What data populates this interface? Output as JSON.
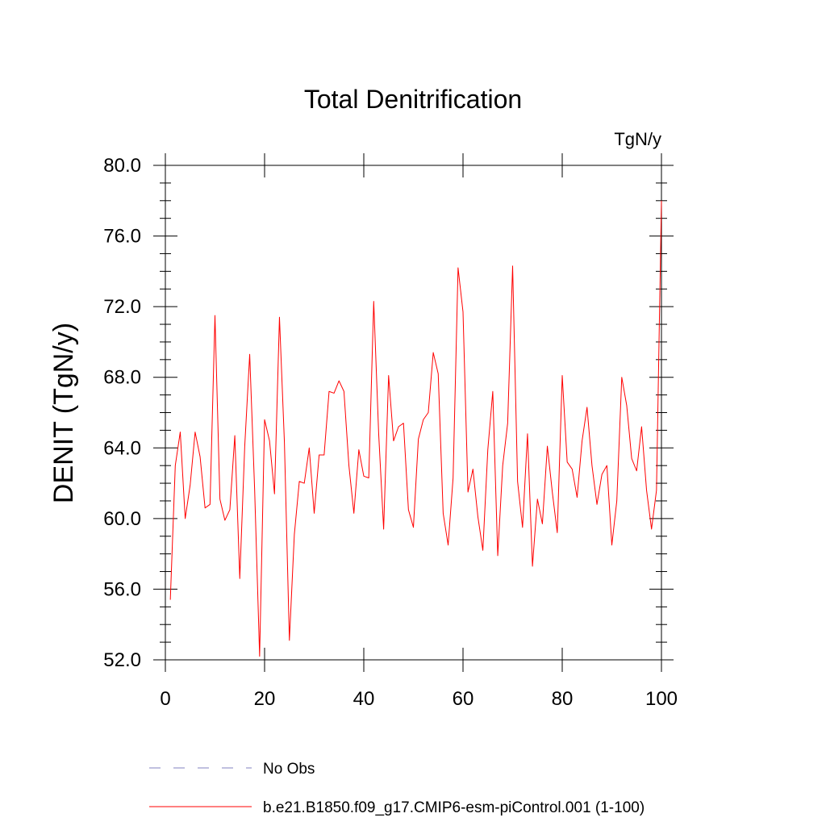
{
  "chart_data": {
    "type": "line",
    "title": "Total Denitrification",
    "units": "TgN/y",
    "xlabel": "",
    "ylabel": "DENIT  (TgN/y)",
    "xlim": [
      0,
      100
    ],
    "ylim": [
      52,
      80
    ],
    "xticks": [
      0,
      20,
      40,
      60,
      80,
      100
    ],
    "xtick_labels": [
      "0",
      "20",
      "40",
      "60",
      "80",
      "100"
    ],
    "yticks": [
      52,
      56,
      60,
      64,
      68,
      72,
      76,
      80
    ],
    "ytick_labels": [
      "52.0",
      "56.0",
      "60.0",
      "64.0",
      "68.0",
      "72.0",
      "76.0",
      "80.0"
    ],
    "grid": false,
    "legend_position": "bottom",
    "series": [
      {
        "name": "b.e21.B1850.f09_g17.CMIP6-esm-piControl.001 (1-100)",
        "color": "#ff0000",
        "style": "solid",
        "x": [
          1,
          2,
          3,
          4,
          5,
          6,
          7,
          8,
          9,
          10,
          11,
          12,
          13,
          14,
          15,
          16,
          17,
          18,
          19,
          20,
          21,
          22,
          23,
          24,
          25,
          26,
          27,
          28,
          29,
          30,
          31,
          32,
          33,
          34,
          35,
          36,
          37,
          38,
          39,
          40,
          41,
          42,
          43,
          44,
          45,
          46,
          47,
          48,
          49,
          50,
          51,
          52,
          53,
          54,
          55,
          56,
          57,
          58,
          59,
          60,
          61,
          62,
          63,
          64,
          65,
          66,
          67,
          68,
          69,
          70,
          71,
          72,
          73,
          74,
          75,
          76,
          77,
          78,
          79,
          80,
          81,
          82,
          83,
          84,
          85,
          86,
          87,
          88,
          89,
          90,
          91,
          92,
          93,
          94,
          95,
          96,
          97,
          98,
          99,
          100
        ],
        "values": [
          55.4,
          63.0,
          64.9,
          60.0,
          61.9,
          64.9,
          63.5,
          60.6,
          60.8,
          71.5,
          61.1,
          59.9,
          60.5,
          64.7,
          56.6,
          64.1,
          69.3,
          61.6,
          52.2,
          65.6,
          64.4,
          61.4,
          71.4,
          64.3,
          53.1,
          59.1,
          62.1,
          62.0,
          64.0,
          60.3,
          63.6,
          63.6,
          67.2,
          67.1,
          67.8,
          67.2,
          63.0,
          60.3,
          63.9,
          62.4,
          62.3,
          72.3,
          64.8,
          59.4,
          68.1,
          64.4,
          65.2,
          65.4,
          60.5,
          59.5,
          64.5,
          65.6,
          66.0,
          69.4,
          68.2,
          60.3,
          58.5,
          62.3,
          74.2,
          71.7,
          61.5,
          62.8,
          60.1,
          58.2,
          63.9,
          67.2,
          57.9,
          63.0,
          65.4,
          74.3,
          62.1,
          59.5,
          64.8,
          57.3,
          61.1,
          59.7,
          64.1,
          61.5,
          59.2,
          68.1,
          63.2,
          62.8,
          61.2,
          64.4,
          66.3,
          63.0,
          60.8,
          62.5,
          63.0,
          58.5,
          61.0,
          68.0,
          66.4,
          63.4,
          62.7,
          65.2,
          61.6,
          59.4,
          61.6,
          78.0
        ]
      },
      {
        "name": "No Obs",
        "color": "#8080c0",
        "style": "dashed",
        "x": [],
        "values": []
      }
    ]
  }
}
